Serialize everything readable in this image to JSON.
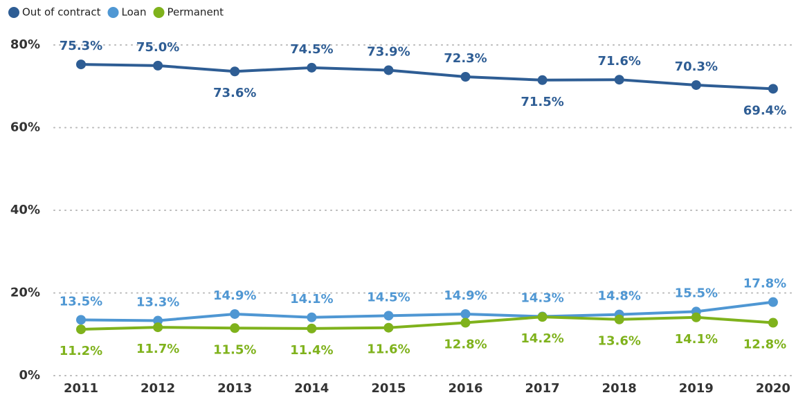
{
  "chart_data": {
    "type": "line",
    "categories": [
      "2011",
      "2012",
      "2013",
      "2014",
      "2015",
      "2016",
      "2017",
      "2018",
      "2019",
      "2020"
    ],
    "series": [
      {
        "name": "Out of contract",
        "color": "#2e5d94",
        "values": [
          75.3,
          75.0,
          73.6,
          74.5,
          73.9,
          72.3,
          71.5,
          71.6,
          70.3,
          69.4
        ],
        "value_labels": [
          "75.3%",
          "75.0%",
          "73.6%",
          "74.5%",
          "73.9%",
          "72.3%",
          "71.5%",
          "71.6%",
          "70.3%",
          "69.4%"
        ]
      },
      {
        "name": "Loan",
        "color": "#4f97d3",
        "values": [
          13.5,
          13.3,
          14.9,
          14.1,
          14.5,
          14.9,
          14.3,
          14.8,
          15.5,
          17.8
        ],
        "value_labels": [
          "13.5%",
          "13.3%",
          "14.9%",
          "14.1%",
          "14.5%",
          "14.9%",
          "14.3%",
          "14.8%",
          "15.5%",
          "17.8%"
        ]
      },
      {
        "name": "Permanent",
        "color": "#7fb21c",
        "values": [
          11.2,
          11.7,
          11.5,
          11.4,
          11.6,
          12.8,
          14.2,
          13.6,
          14.1,
          12.8
        ],
        "value_labels": [
          "11.2%",
          "11.7%",
          "11.5%",
          "11.4%",
          "11.6%",
          "12.8%",
          "14.2%",
          "13.6%",
          "14.1%",
          "12.8%"
        ]
      }
    ],
    "ylim": [
      0,
      80
    ],
    "yticks": [
      {
        "value": 0,
        "label": "0%"
      },
      {
        "value": 20,
        "label": "20%"
      },
      {
        "value": 40,
        "label": "40%"
      },
      {
        "value": 60,
        "label": "60%"
      },
      {
        "value": 80,
        "label": "80%"
      }
    ],
    "grid": true
  }
}
